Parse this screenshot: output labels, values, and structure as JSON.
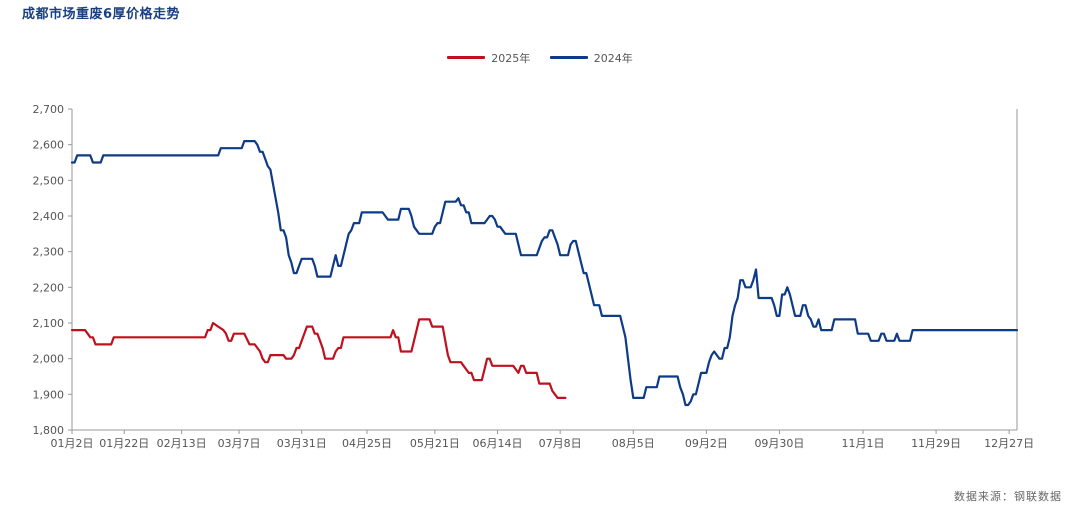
{
  "title": "成都市场重废6厚价格走势",
  "source": "数据来源：钢联数据",
  "colors": {
    "s2025": "#c0101e",
    "s2024": "#0d3b87"
  },
  "chart_data": {
    "type": "line",
    "yticks": [
      "1,800",
      "1,900",
      "2,000",
      "2,100",
      "2,200",
      "2,300",
      "2,400",
      "2,500",
      "2,600",
      "2,700"
    ],
    "ylim": [
      1800,
      2700
    ],
    "xlim_days": [
      2,
      364
    ],
    "xticks": [
      {
        "label": "01月2日",
        "day": 2
      },
      {
        "label": "01月22日",
        "day": 22
      },
      {
        "label": "02月13日",
        "day": 44
      },
      {
        "label": "03月7日",
        "day": 66
      },
      {
        "label": "03月31日",
        "day": 90
      },
      {
        "label": "04月25日",
        "day": 115
      },
      {
        "label": "05月21日",
        "day": 141
      },
      {
        "label": "06月14日",
        "day": 165
      },
      {
        "label": "07月8日",
        "day": 189
      },
      {
        "label": "08月5日",
        "day": 217
      },
      {
        "label": "09月2日",
        "day": 245
      },
      {
        "label": "09月30日",
        "day": 273
      },
      {
        "label": "11月1日",
        "day": 305
      },
      {
        "label": "11月29日",
        "day": 333
      },
      {
        "label": "12月27日",
        "day": 361
      }
    ],
    "series": [
      {
        "name": "2025年",
        "color": "#c0101e",
        "points": [
          [
            2,
            2080
          ],
          [
            7,
            2080
          ],
          [
            8,
            2070
          ],
          [
            9,
            2060
          ],
          [
            10,
            2060
          ],
          [
            11,
            2040
          ],
          [
            17,
            2040
          ],
          [
            18,
            2060
          ],
          [
            53,
            2060
          ],
          [
            54,
            2080
          ],
          [
            55,
            2080
          ],
          [
            56,
            2100
          ],
          [
            58,
            2090
          ],
          [
            60,
            2080
          ],
          [
            61,
            2070
          ],
          [
            62,
            2050
          ],
          [
            63,
            2050
          ],
          [
            64,
            2070
          ],
          [
            68,
            2070
          ],
          [
            70,
            2040
          ],
          [
            72,
            2040
          ],
          [
            74,
            2020
          ],
          [
            75,
            2000
          ],
          [
            76,
            1990
          ],
          [
            77,
            1990
          ],
          [
            78,
            2010
          ],
          [
            83,
            2010
          ],
          [
            84,
            2000
          ],
          [
            86,
            2000
          ],
          [
            87,
            2010
          ],
          [
            88,
            2030
          ],
          [
            89,
            2030
          ],
          [
            90,
            2050
          ],
          [
            91,
            2070
          ],
          [
            92,
            2090
          ],
          [
            94,
            2090
          ],
          [
            95,
            2070
          ],
          [
            96,
            2070
          ],
          [
            97,
            2050
          ],
          [
            98,
            2030
          ],
          [
            99,
            2000
          ],
          [
            102,
            2000
          ],
          [
            103,
            2020
          ],
          [
            104,
            2030
          ],
          [
            105,
            2030
          ],
          [
            106,
            2060
          ],
          [
            124,
            2060
          ],
          [
            125,
            2080
          ],
          [
            126,
            2060
          ],
          [
            127,
            2060
          ],
          [
            128,
            2020
          ],
          [
            132,
            2020
          ],
          [
            133,
            2050
          ],
          [
            134,
            2080
          ],
          [
            135,
            2110
          ],
          [
            139,
            2110
          ],
          [
            140,
            2090
          ],
          [
            144,
            2090
          ],
          [
            145,
            2050
          ],
          [
            146,
            2010
          ],
          [
            147,
            1990
          ],
          [
            151,
            1990
          ],
          [
            152,
            1980
          ],
          [
            153,
            1970
          ],
          [
            154,
            1960
          ],
          [
            155,
            1960
          ],
          [
            156,
            1940
          ],
          [
            159,
            1940
          ],
          [
            160,
            1970
          ],
          [
            161,
            2000
          ],
          [
            162,
            2000
          ],
          [
            163,
            1980
          ],
          [
            171,
            1980
          ],
          [
            172,
            1970
          ],
          [
            173,
            1960
          ],
          [
            174,
            1980
          ],
          [
            175,
            1980
          ],
          [
            176,
            1960
          ],
          [
            180,
            1960
          ],
          [
            181,
            1930
          ],
          [
            185,
            1930
          ],
          [
            186,
            1910
          ],
          [
            187,
            1900
          ],
          [
            188,
            1890
          ],
          [
            191,
            1890
          ]
        ]
      },
      {
        "name": "2024年",
        "color": "#0d3b87",
        "points": [
          [
            2,
            2550
          ],
          [
            3,
            2550
          ],
          [
            4,
            2570
          ],
          [
            9,
            2570
          ],
          [
            10,
            2550
          ],
          [
            13,
            2550
          ],
          [
            14,
            2570
          ],
          [
            58,
            2570
          ],
          [
            59,
            2590
          ],
          [
            67,
            2590
          ],
          [
            68,
            2610
          ],
          [
            72,
            2610
          ],
          [
            73,
            2600
          ],
          [
            74,
            2580
          ],
          [
            75,
            2580
          ],
          [
            76,
            2560
          ],
          [
            77,
            2540
          ],
          [
            78,
            2530
          ],
          [
            79,
            2490
          ],
          [
            80,
            2450
          ],
          [
            81,
            2410
          ],
          [
            82,
            2360
          ],
          [
            83,
            2360
          ],
          [
            84,
            2340
          ],
          [
            85,
            2290
          ],
          [
            86,
            2270
          ],
          [
            87,
            2240
          ],
          [
            88,
            2240
          ],
          [
            89,
            2260
          ],
          [
            90,
            2280
          ],
          [
            94,
            2280
          ],
          [
            95,
            2260
          ],
          [
            96,
            2230
          ],
          [
            101,
            2230
          ],
          [
            102,
            2260
          ],
          [
            103,
            2290
          ],
          [
            104,
            2260
          ],
          [
            105,
            2260
          ],
          [
            106,
            2290
          ],
          [
            107,
            2320
          ],
          [
            108,
            2350
          ],
          [
            109,
            2360
          ],
          [
            110,
            2380
          ],
          [
            112,
            2380
          ],
          [
            113,
            2410
          ],
          [
            121,
            2410
          ],
          [
            122,
            2400
          ],
          [
            123,
            2390
          ],
          [
            127,
            2390
          ],
          [
            128,
            2420
          ],
          [
            131,
            2420
          ],
          [
            132,
            2400
          ],
          [
            133,
            2370
          ],
          [
            134,
            2360
          ],
          [
            135,
            2350
          ],
          [
            140,
            2350
          ],
          [
            141,
            2370
          ],
          [
            142,
            2380
          ],
          [
            143,
            2380
          ],
          [
            144,
            2410
          ],
          [
            145,
            2440
          ],
          [
            149,
            2440
          ],
          [
            150,
            2450
          ],
          [
            151,
            2430
          ],
          [
            152,
            2430
          ],
          [
            153,
            2410
          ],
          [
            154,
            2410
          ],
          [
            155,
            2380
          ],
          [
            160,
            2380
          ],
          [
            161,
            2390
          ],
          [
            162,
            2400
          ],
          [
            163,
            2400
          ],
          [
            164,
            2390
          ],
          [
            165,
            2370
          ],
          [
            166,
            2370
          ],
          [
            167,
            2360
          ],
          [
            168,
            2350
          ],
          [
            172,
            2350
          ],
          [
            173,
            2320
          ],
          [
            174,
            2290
          ],
          [
            180,
            2290
          ],
          [
            181,
            2310
          ],
          [
            182,
            2330
          ],
          [
            183,
            2340
          ],
          [
            184,
            2340
          ],
          [
            185,
            2360
          ],
          [
            186,
            2360
          ],
          [
            187,
            2340
          ],
          [
            188,
            2320
          ],
          [
            189,
            2290
          ],
          [
            192,
            2290
          ],
          [
            193,
            2320
          ],
          [
            194,
            2330
          ],
          [
            195,
            2330
          ],
          [
            196,
            2300
          ],
          [
            197,
            2270
          ],
          [
            198,
            2240
          ],
          [
            199,
            2240
          ],
          [
            200,
            2210
          ],
          [
            201,
            2180
          ],
          [
            202,
            2150
          ],
          [
            204,
            2150
          ],
          [
            205,
            2120
          ],
          [
            212,
            2120
          ],
          [
            213,
            2090
          ],
          [
            214,
            2060
          ],
          [
            215,
            2000
          ],
          [
            216,
            1940
          ],
          [
            217,
            1890
          ],
          [
            221,
            1890
          ],
          [
            222,
            1920
          ],
          [
            226,
            1920
          ],
          [
            227,
            1950
          ],
          [
            234,
            1950
          ],
          [
            235,
            1920
          ],
          [
            236,
            1900
          ],
          [
            237,
            1870
          ],
          [
            238,
            1870
          ],
          [
            239,
            1880
          ],
          [
            240,
            1900
          ],
          [
            241,
            1900
          ],
          [
            242,
            1930
          ],
          [
            243,
            1960
          ],
          [
            245,
            1960
          ],
          [
            246,
            1990
          ],
          [
            247,
            2010
          ],
          [
            248,
            2020
          ],
          [
            249,
            2010
          ],
          [
            250,
            2000
          ],
          [
            251,
            2000
          ],
          [
            252,
            2030
          ],
          [
            253,
            2030
          ],
          [
            254,
            2060
          ],
          [
            255,
            2120
          ],
          [
            256,
            2150
          ],
          [
            257,
            2170
          ],
          [
            258,
            2220
          ],
          [
            259,
            2220
          ],
          [
            260,
            2200
          ],
          [
            262,
            2200
          ],
          [
            263,
            2220
          ],
          [
            264,
            2250
          ],
          [
            265,
            2170
          ],
          [
            270,
            2170
          ],
          [
            271,
            2150
          ],
          [
            272,
            2120
          ],
          [
            273,
            2120
          ],
          [
            274,
            2180
          ],
          [
            275,
            2180
          ],
          [
            276,
            2200
          ],
          [
            277,
            2180
          ],
          [
            278,
            2150
          ],
          [
            279,
            2120
          ],
          [
            281,
            2120
          ],
          [
            282,
            2150
          ],
          [
            283,
            2150
          ],
          [
            284,
            2120
          ],
          [
            285,
            2110
          ],
          [
            286,
            2090
          ],
          [
            287,
            2090
          ],
          [
            288,
            2110
          ],
          [
            289,
            2080
          ],
          [
            293,
            2080
          ],
          [
            294,
            2110
          ],
          [
            302,
            2110
          ],
          [
            303,
            2070
          ],
          [
            307,
            2070
          ],
          [
            308,
            2050
          ],
          [
            311,
            2050
          ],
          [
            312,
            2070
          ],
          [
            313,
            2070
          ],
          [
            314,
            2050
          ],
          [
            317,
            2050
          ],
          [
            318,
            2070
          ],
          [
            319,
            2050
          ],
          [
            323,
            2050
          ],
          [
            324,
            2080
          ],
          [
            364,
            2080
          ]
        ]
      }
    ]
  }
}
